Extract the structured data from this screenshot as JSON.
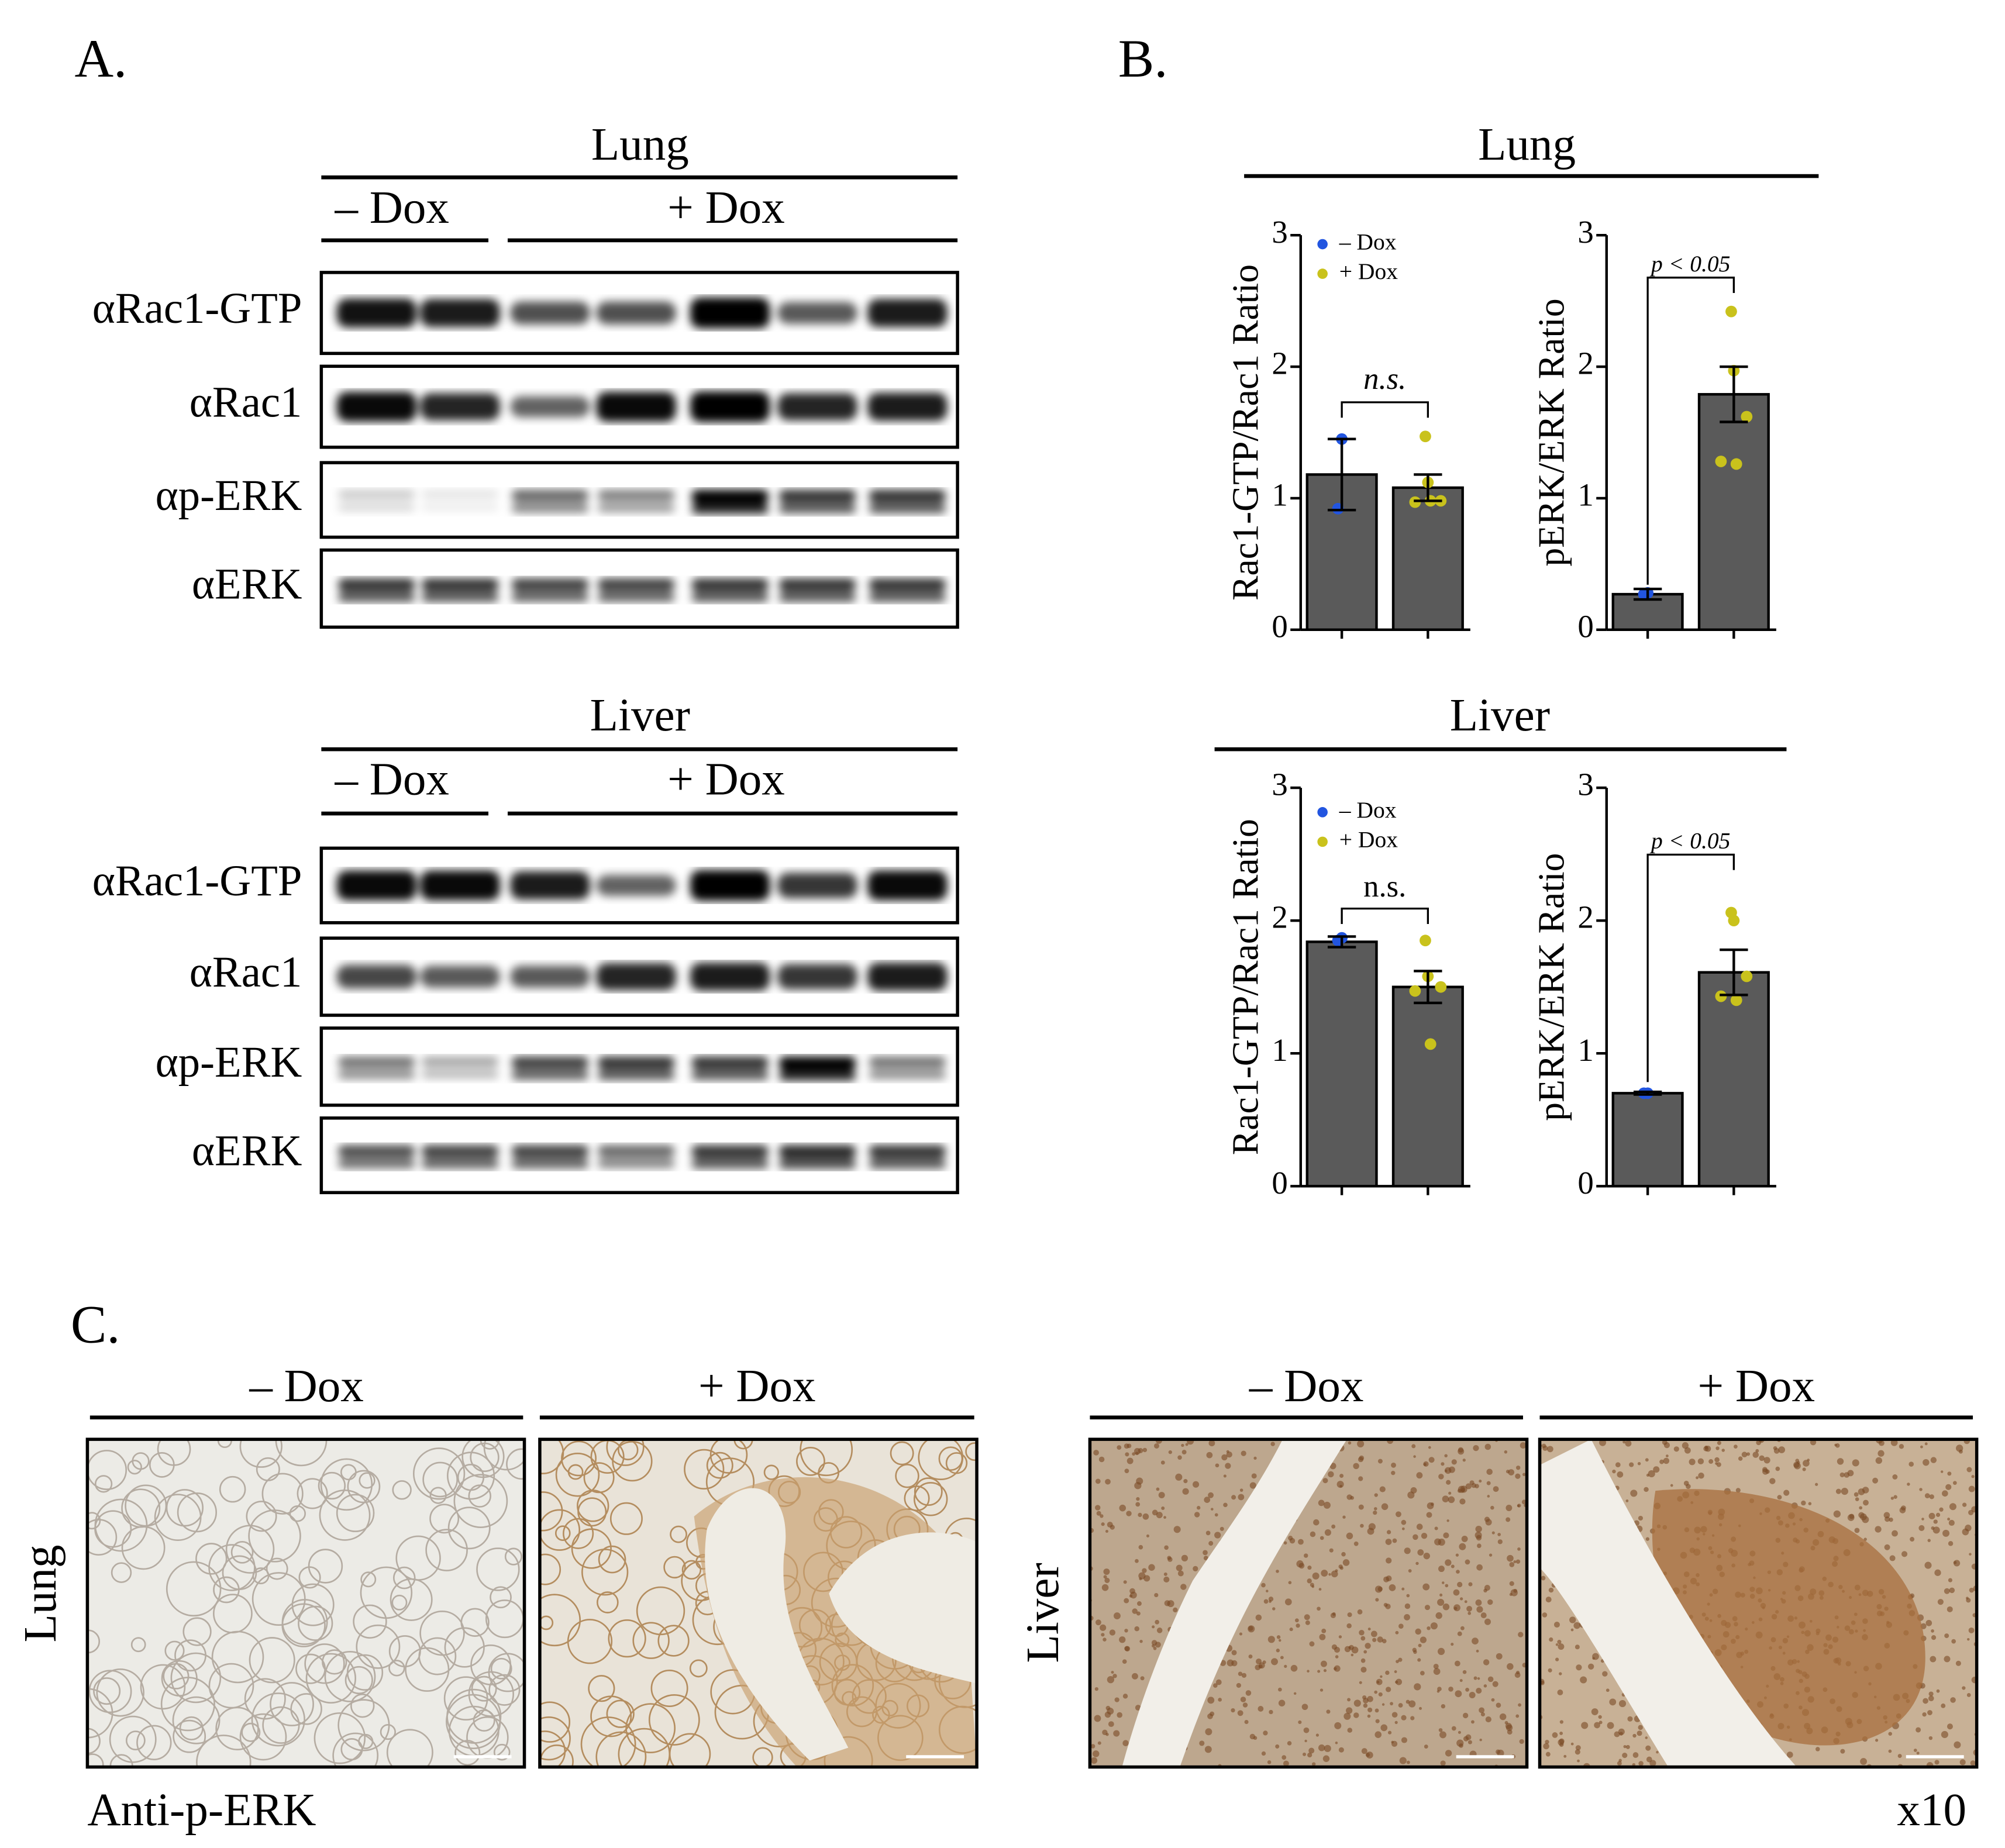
{
  "panel_a": {
    "label": "A.",
    "blots": [
      {
        "tissue": "Lung",
        "groups": [
          "– Dox",
          "+ Dox"
        ],
        "rows": [
          "αRac1-GTP",
          "αRac1",
          "αp-ERK",
          "αERK"
        ]
      },
      {
        "tissue": "Liver",
        "groups": [
          "– Dox",
          "+ Dox"
        ],
        "rows": [
          "αRac1-GTP",
          "αRac1",
          "αp-ERK",
          "αERK"
        ]
      }
    ]
  },
  "panel_b": {
    "label": "B.",
    "groups": [
      "Lung",
      "Liver"
    ]
  },
  "chart_data": [
    {
      "type": "bar",
      "ylabel": "Rac1-GTP/Rac1 Ratio",
      "ylim": [
        0,
        3
      ],
      "yticks": [
        0,
        1,
        2,
        3
      ],
      "legend": true,
      "annotation": "n.s.",
      "annotation_italic": true,
      "bars": {
        "color": "#5a5a5a",
        "values": [
          1.18,
          1.08
        ],
        "errors": [
          0.27,
          0.1
        ]
      },
      "series": [
        {
          "name": "– Dox",
          "color": "#2255e0",
          "values": [
            1.45,
            0.92
          ]
        },
        {
          "name": "+ Dox",
          "color": "#c9c21c",
          "values": [
            1.47,
            1.12,
            0.98,
            0.97,
            0.98
          ]
        }
      ]
    },
    {
      "type": "bar",
      "ylabel": "pERK/ERK Ratio",
      "ylim": [
        0,
        3
      ],
      "yticks": [
        0,
        1,
        2,
        3
      ],
      "legend": false,
      "annotation": "p < 0.05",
      "annotation_italic": true,
      "bars": {
        "color": "#5a5a5a",
        "values": [
          0.27,
          1.79
        ],
        "errors": [
          0.04,
          0.21
        ]
      },
      "series": [
        {
          "color": "#2255e0",
          "values": [
            0.28,
            0.27
          ]
        },
        {
          "color": "#c9c21c",
          "values": [
            2.42,
            1.97,
            1.62,
            1.28,
            1.26
          ]
        }
      ]
    },
    {
      "type": "bar",
      "ylabel": "Rac1-GTP/Rac1 Ratio",
      "ylim": [
        0,
        3
      ],
      "yticks": [
        0,
        1,
        2,
        3
      ],
      "legend": true,
      "annotation": "n.s.",
      "annotation_italic": false,
      "bars": {
        "color": "#5a5a5a",
        "values": [
          1.84,
          1.5
        ],
        "errors": [
          0.04,
          0.12
        ]
      },
      "series": [
        {
          "name": "– Dox",
          "color": "#2255e0",
          "values": [
            1.87,
            1.85
          ]
        },
        {
          "name": "+ Dox",
          "color": "#c9c21c",
          "values": [
            1.85,
            1.58,
            1.5,
            1.47,
            1.07
          ]
        }
      ]
    },
    {
      "type": "bar",
      "ylabel": "pERK/ERK Ratio",
      "ylim": [
        0,
        3
      ],
      "yticks": [
        0,
        1,
        2,
        3
      ],
      "legend": false,
      "annotation": "p < 0.05",
      "annotation_italic": true,
      "bars": {
        "color": "#5a5a5a",
        "values": [
          0.7,
          1.61
        ],
        "errors": [
          0.01,
          0.17
        ]
      },
      "series": [
        {
          "color": "#2255e0",
          "values": [
            0.7,
            0.7
          ]
        },
        {
          "color": "#c9c21c",
          "values": [
            2.06,
            2.0,
            1.58,
            1.43,
            1.4
          ]
        }
      ]
    }
  ],
  "panel_c": {
    "label": "C.",
    "rows": [
      "Lung",
      "Liver"
    ],
    "columns": [
      "– Dox",
      "+ Dox"
    ],
    "stain": "Anti-p-ERK",
    "magnification": "x10"
  }
}
